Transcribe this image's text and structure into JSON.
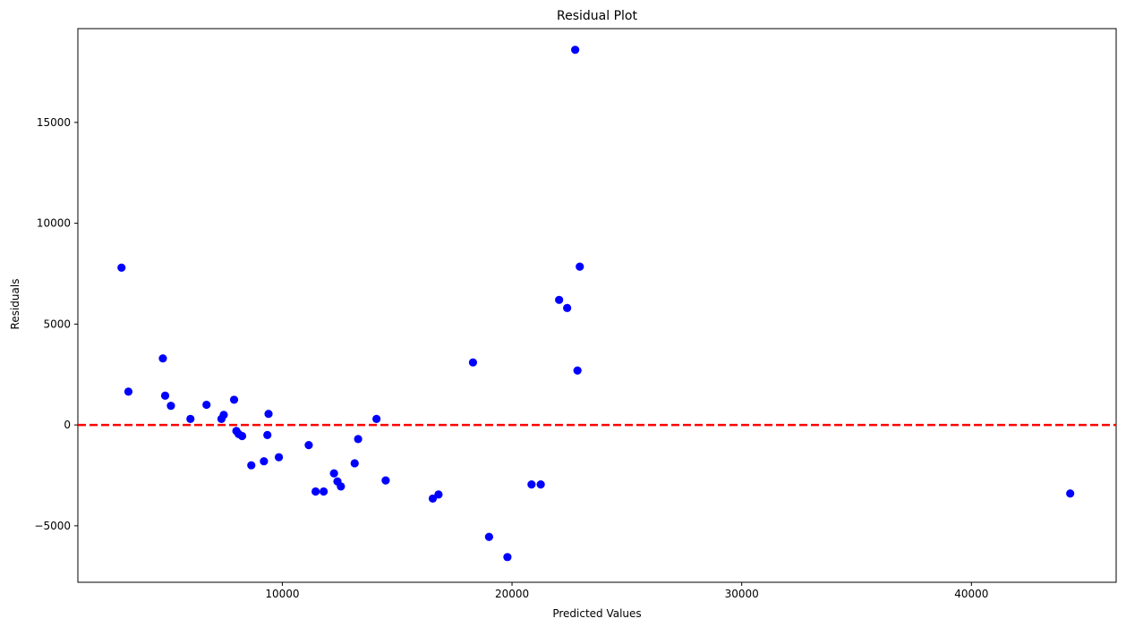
{
  "chart_data": {
    "type": "scatter",
    "title": "Residual Plot",
    "xlabel": "Predicted Values",
    "ylabel": "Residuals",
    "xlim": [
      1100,
      46300
    ],
    "ylim": [
      -7800,
      19650
    ],
    "xticks": [
      10000,
      20000,
      30000,
      40000
    ],
    "yticks": [
      -5000,
      0,
      5000,
      10000,
      15000
    ],
    "grid": false,
    "point_color": "#0000ff",
    "reference_line": {
      "y": 0,
      "color": "#ff0000",
      "style": "dashed"
    },
    "points": [
      {
        "x": 3000,
        "y": 7800
      },
      {
        "x": 3300,
        "y": 1650
      },
      {
        "x": 4800,
        "y": 3300
      },
      {
        "x": 4900,
        "y": 1450
      },
      {
        "x": 5150,
        "y": 950
      },
      {
        "x": 6000,
        "y": 300
      },
      {
        "x": 6700,
        "y": 1000
      },
      {
        "x": 7350,
        "y": 300
      },
      {
        "x": 7450,
        "y": 500
      },
      {
        "x": 7900,
        "y": 1250
      },
      {
        "x": 8000,
        "y": -300
      },
      {
        "x": 8100,
        "y": -450
      },
      {
        "x": 8250,
        "y": -550
      },
      {
        "x": 8650,
        "y": -2000
      },
      {
        "x": 9200,
        "y": -1800
      },
      {
        "x": 9350,
        "y": -500
      },
      {
        "x": 9400,
        "y": 550
      },
      {
        "x": 9850,
        "y": -1600
      },
      {
        "x": 11150,
        "y": -1000
      },
      {
        "x": 11450,
        "y": -3300
      },
      {
        "x": 11800,
        "y": -3300
      },
      {
        "x": 12250,
        "y": -2400
      },
      {
        "x": 12400,
        "y": -2800
      },
      {
        "x": 12550,
        "y": -3050
      },
      {
        "x": 13150,
        "y": -1900
      },
      {
        "x": 13300,
        "y": -700
      },
      {
        "x": 14100,
        "y": 300
      },
      {
        "x": 14500,
        "y": -2750
      },
      {
        "x": 16550,
        "y": -3650
      },
      {
        "x": 16800,
        "y": -3450
      },
      {
        "x": 18300,
        "y": 3100
      },
      {
        "x": 19000,
        "y": -5550
      },
      {
        "x": 19800,
        "y": -6550
      },
      {
        "x": 20850,
        "y": -2950
      },
      {
        "x": 21250,
        "y": -2950
      },
      {
        "x": 22050,
        "y": 6200
      },
      {
        "x": 22400,
        "y": 5800
      },
      {
        "x": 22750,
        "y": 18600
      },
      {
        "x": 22850,
        "y": 2700
      },
      {
        "x": 22950,
        "y": 7850
      },
      {
        "x": 44300,
        "y": -3400
      }
    ]
  }
}
